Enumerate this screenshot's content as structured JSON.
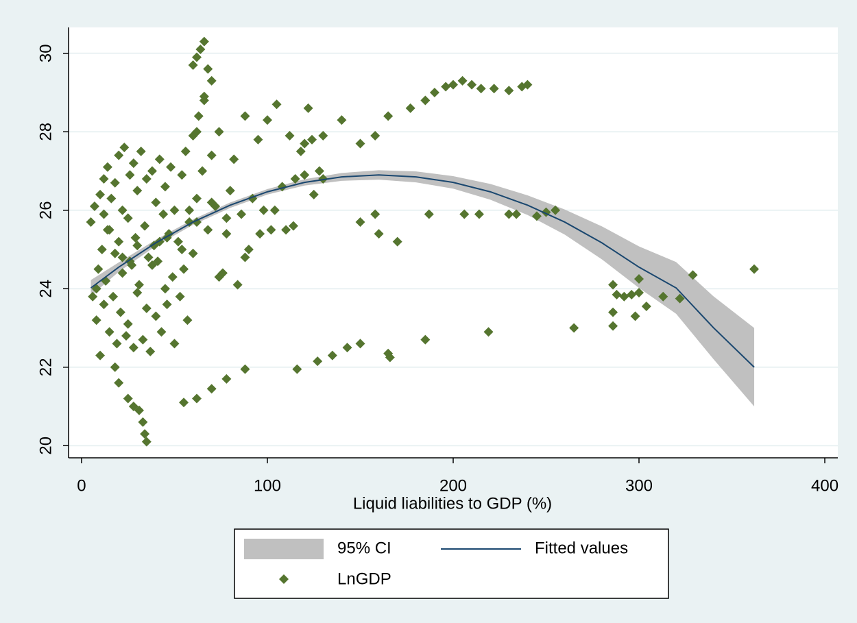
{
  "chart_data": {
    "type": "scatter",
    "xlabel": "Liquid liabilities to GDP (%)",
    "xlim": [
      -7,
      407
    ],
    "ylim": [
      19.69,
      30.66
    ],
    "xticks": [
      0,
      100,
      200,
      300,
      400
    ],
    "yticks": [
      20,
      22,
      24,
      26,
      28,
      30
    ],
    "grid": true,
    "series": [
      {
        "name": "95% CI",
        "type": "area",
        "color": "#c0c0c0",
        "x": [
          5,
          20,
          40,
          60,
          80,
          100,
          120,
          140,
          160,
          180,
          200,
          220,
          240,
          260,
          280,
          300,
          320,
          340,
          362
        ],
        "lower": [
          23.82,
          24.43,
          25.09,
          25.63,
          26.06,
          26.4,
          26.63,
          26.75,
          26.78,
          26.71,
          26.55,
          26.27,
          25.88,
          25.38,
          24.75,
          24.02,
          23.36,
          22.21,
          21.0
        ],
        "upper": [
          24.22,
          24.67,
          25.25,
          25.77,
          26.2,
          26.54,
          26.79,
          26.95,
          27.02,
          26.99,
          26.87,
          26.67,
          26.38,
          26.02,
          25.59,
          25.08,
          24.68,
          23.81,
          23.0
        ]
      },
      {
        "name": "Fitted values",
        "type": "line",
        "color": "#1a476f",
        "x": [
          5,
          20,
          40,
          60,
          80,
          100,
          120,
          140,
          160,
          180,
          200,
          220,
          240,
          260,
          280,
          300,
          320,
          340,
          362
        ],
        "values": [
          24.02,
          24.55,
          25.17,
          25.7,
          26.13,
          26.47,
          26.71,
          26.85,
          26.9,
          26.85,
          26.71,
          26.47,
          26.13,
          25.7,
          25.17,
          24.55,
          24.02,
          23.01,
          22.0
        ]
      },
      {
        "name": "LnGDP",
        "type": "scatter",
        "color": "#55752f",
        "x": [
          5,
          6,
          7,
          8,
          9,
          10,
          10,
          11,
          12,
          12,
          13,
          14,
          15,
          15,
          16,
          17,
          18,
          18,
          19,
          20,
          20,
          21,
          22,
          22,
          23,
          24,
          25,
          25,
          26,
          27,
          28,
          28,
          29,
          30,
          30,
          31,
          32,
          33,
          34,
          35,
          35,
          36,
          37,
          38,
          39,
          40,
          40,
          41,
          42,
          43,
          44,
          45,
          45,
          46,
          47,
          48,
          49,
          50,
          50,
          52,
          53,
          54,
          55,
          56,
          57,
          58,
          60,
          60,
          62,
          63,
          65,
          66,
          68,
          70,
          72,
          74,
          76,
          78,
          80,
          82,
          84,
          86,
          88,
          90,
          8,
          14,
          22,
          30,
          38,
          46,
          54,
          62,
          70,
          78,
          12,
          26,
          42,
          58,
          74,
          88,
          92,
          95,
          98,
          100,
          102,
          105,
          108,
          110,
          112,
          115,
          118,
          120,
          122,
          125,
          128,
          130,
          96,
          104,
          114,
          124,
          18,
          20,
          25,
          28,
          31,
          33,
          34,
          35,
          60,
          62,
          64,
          66,
          68,
          70,
          66,
          62,
          120,
          130,
          140,
          150,
          158,
          165,
          177,
          185,
          190,
          196,
          200,
          205,
          210,
          215,
          222,
          230,
          237,
          240,
          150,
          158,
          160,
          170,
          187,
          206,
          214,
          230,
          234,
          245,
          250,
          255,
          55,
          62,
          70,
          78,
          88,
          116,
          127,
          135,
          143,
          150,
          165,
          166,
          185,
          219,
          265,
          286,
          286,
          298,
          304,
          313,
          322,
          288,
          292,
          296,
          300,
          286,
          300,
          329,
          362
        ],
        "values": [
          25.7,
          23.8,
          26.1,
          23.2,
          24.5,
          22.3,
          26.4,
          25.0,
          23.6,
          26.8,
          24.2,
          27.1,
          22.9,
          25.5,
          26.3,
          23.8,
          24.9,
          26.7,
          22.6,
          25.2,
          27.4,
          23.4,
          26.0,
          24.4,
          27.6,
          22.8,
          25.8,
          23.1,
          26.9,
          24.6,
          22.5,
          27.2,
          25.3,
          23.9,
          26.5,
          24.1,
          27.5,
          22.7,
          25.6,
          23.5,
          26.8,
          24.8,
          22.4,
          27.0,
          25.1,
          23.3,
          26.2,
          24.7,
          27.3,
          22.9,
          25.9,
          24.0,
          26.6,
          23.6,
          25.4,
          27.1,
          24.3,
          22.6,
          26.0,
          25.2,
          23.8,
          26.9,
          24.5,
          27.5,
          23.2,
          25.7,
          24.9,
          27.9,
          26.3,
          28.4,
          27.0,
          28.9,
          25.5,
          27.4,
          26.1,
          28.0,
          24.4,
          25.8,
          26.5,
          27.3,
          24.1,
          25.9,
          28.4,
          25.0,
          24.0,
          25.5,
          24.8,
          25.1,
          24.6,
          25.3,
          25.0,
          25.7,
          26.2,
          25.4,
          25.9,
          24.7,
          25.2,
          26.0,
          24.3,
          24.8,
          26.3,
          27.8,
          26.0,
          28.3,
          25.5,
          28.7,
          26.6,
          25.5,
          27.9,
          26.8,
          27.5,
          26.9,
          28.6,
          26.4,
          27.0,
          26.8,
          25.4,
          26.0,
          25.6,
          27.8,
          22.0,
          21.6,
          21.2,
          21.0,
          20.9,
          20.6,
          20.3,
          20.1,
          29.7,
          29.9,
          30.1,
          30.3,
          29.6,
          29.3,
          28.8,
          28.0,
          27.7,
          27.9,
          28.3,
          27.7,
          27.9,
          28.4,
          28.6,
          28.8,
          29.0,
          29.15,
          29.2,
          29.3,
          29.2,
          29.1,
          29.1,
          29.05,
          29.15,
          29.2,
          25.7,
          25.9,
          25.4,
          25.2,
          25.9,
          25.9,
          25.9,
          25.9,
          25.9,
          25.85,
          25.95,
          26.0,
          21.1,
          21.2,
          21.45,
          21.7,
          21.95,
          21.95,
          22.15,
          22.3,
          22.5,
          22.6,
          22.35,
          22.25,
          22.7,
          22.9,
          23.0,
          23.05,
          23.4,
          23.3,
          23.55,
          23.8,
          23.75,
          23.85,
          23.8,
          23.85,
          23.9,
          24.1,
          24.25,
          24.35,
          24.5
        ]
      }
    ]
  }
}
